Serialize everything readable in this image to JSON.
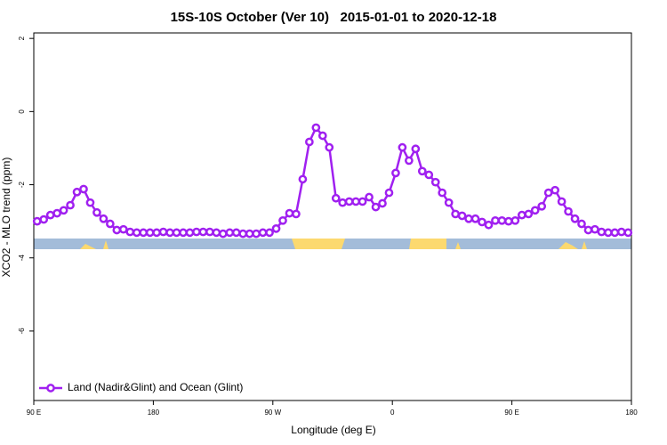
{
  "chart_data": {
    "type": "line",
    "title": "15S-10S October (Ver 10)   2015-01-01 to 2020-12-18",
    "xlabel": "Longitude (deg E)",
    "ylabel": "XCO2 - MLO trend (ppm)",
    "x": [
      92.5,
      97.5,
      102.5,
      107.5,
      112.5,
      117.5,
      122.5,
      127.5,
      132.5,
      137.5,
      142.5,
      147.5,
      152.5,
      157.5,
      162.5,
      167.5,
      172.5,
      177.5,
      182.5,
      187.5,
      192.5,
      197.5,
      202.5,
      207.5,
      212.5,
      217.5,
      222.5,
      227.5,
      232.5,
      237.5,
      242.5,
      247.5,
      252.5,
      257.5,
      262.5,
      267.5,
      272.5,
      277.5,
      282.5,
      287.5,
      292.5,
      297.5,
      302.5,
      307.5,
      312.5,
      317.5,
      322.5,
      327.5,
      332.5,
      337.5,
      342.5,
      347.5,
      352.5,
      357.5,
      362.5,
      367.5,
      372.5,
      377.5,
      382.5,
      387.5,
      392.5,
      397.5,
      402.5,
      407.5,
      412.5,
      417.5,
      422.5,
      427.5,
      432.5,
      437.5,
      442.5,
      447.5,
      452.5,
      457.5,
      462.5,
      467.5,
      472.5,
      477.5,
      482.5,
      487.5,
      492.5,
      497.5,
      502.5,
      507.5,
      512.5,
      517.5,
      522.5,
      527.5,
      532.5,
      537.5
    ],
    "series": [
      {
        "name": "Land (Nadir&Glint) and Ocean (Glint)",
        "color": "#a020f0",
        "values": [
          -3.0,
          -2.95,
          -2.83,
          -2.78,
          -2.7,
          -2.56,
          -2.2,
          -2.12,
          -2.49,
          -2.76,
          -2.93,
          -3.07,
          -3.24,
          -3.22,
          -3.29,
          -3.31,
          -3.31,
          -3.31,
          -3.31,
          -3.29,
          -3.31,
          -3.31,
          -3.31,
          -3.31,
          -3.29,
          -3.29,
          -3.29,
          -3.31,
          -3.34,
          -3.31,
          -3.31,
          -3.34,
          -3.34,
          -3.34,
          -3.31,
          -3.31,
          -3.2,
          -2.98,
          -2.78,
          -2.8,
          -1.85,
          -0.83,
          -0.44,
          -0.66,
          -0.98,
          -2.37,
          -2.49,
          -2.46,
          -2.46,
          -2.46,
          -2.34,
          -2.61,
          -2.51,
          -2.22,
          -1.68,
          -0.98,
          -1.34,
          -1.02,
          -1.63,
          -1.73,
          -1.93,
          -2.22,
          -2.49,
          -2.8,
          -2.85,
          -2.93,
          -2.93,
          -3.02,
          -3.1,
          -2.98,
          -2.98,
          -3.0,
          -2.98,
          -2.83,
          -2.8,
          -2.7,
          -2.59,
          -2.22,
          -2.15,
          -2.46,
          -2.73,
          -2.93,
          -3.07,
          -3.24,
          -3.22,
          -3.29,
          -3.31,
          -3.31,
          -3.29,
          -3.31
        ]
      }
    ],
    "xlim": [
      90,
      540
    ],
    "xticks": [
      {
        "value": 90,
        "label": "90 E"
      },
      {
        "value": 180,
        "label": "180"
      },
      {
        "value": 270,
        "label": "90 W"
      },
      {
        "value": 360,
        "label": "0"
      },
      {
        "value": 450,
        "label": "90 E"
      },
      {
        "value": 540,
        "label": "180"
      }
    ],
    "ylim": [
      -7.9,
      2.15
    ],
    "yticks": [
      2,
      0,
      -2,
      -4,
      -6
    ],
    "legend": "bottomleft"
  }
}
